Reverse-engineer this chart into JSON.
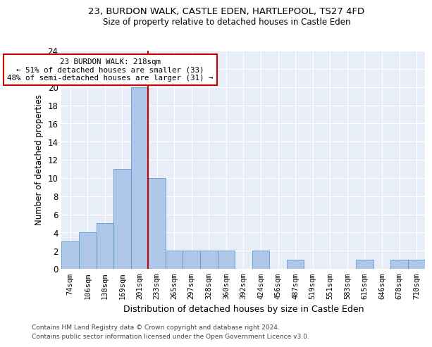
{
  "title1": "23, BURDON WALK, CASTLE EDEN, HARTLEPOOL, TS27 4FD",
  "title2": "Size of property relative to detached houses in Castle Eden",
  "xlabel": "Distribution of detached houses by size in Castle Eden",
  "ylabel": "Number of detached properties",
  "categories": [
    "74sqm",
    "106sqm",
    "138sqm",
    "169sqm",
    "201sqm",
    "233sqm",
    "265sqm",
    "297sqm",
    "328sqm",
    "360sqm",
    "392sqm",
    "424sqm",
    "456sqm",
    "487sqm",
    "519sqm",
    "551sqm",
    "583sqm",
    "615sqm",
    "646sqm",
    "678sqm",
    "710sqm"
  ],
  "values": [
    3,
    4,
    5,
    11,
    20,
    10,
    2,
    2,
    2,
    2,
    0,
    2,
    0,
    1,
    0,
    0,
    0,
    1,
    0,
    1,
    1
  ],
  "bar_color": "#aec6e8",
  "bar_edge_color": "#5b9bd5",
  "property_line_index": 4,
  "property_line_color": "#cc0000",
  "annotation_text": "23 BURDON WALK: 218sqm\n← 51% of detached houses are smaller (33)\n48% of semi-detached houses are larger (31) →",
  "annotation_box_color": "#cc0000",
  "ylim": [
    0,
    24
  ],
  "yticks": [
    0,
    2,
    4,
    6,
    8,
    10,
    12,
    14,
    16,
    18,
    20,
    22,
    24
  ],
  "bg_color": "#e8eef7",
  "grid_color": "#ffffff",
  "footer1": "Contains HM Land Registry data © Crown copyright and database right 2024.",
  "footer2": "Contains public sector information licensed under the Open Government Licence v3.0."
}
